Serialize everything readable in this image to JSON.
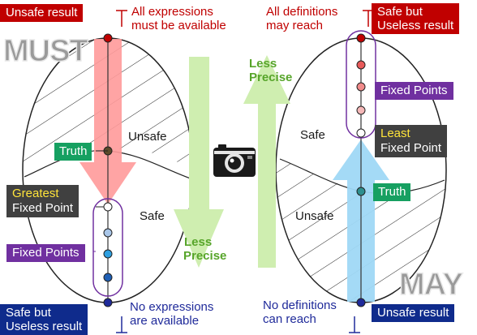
{
  "colors": {
    "red_box": "#c00000",
    "navy_box": "#0f2b8c",
    "green_box": "#16a061",
    "purple_box": "#7030a0",
    "dark_box": "#404040",
    "yellow_text": "#ffe43a",
    "purple_outline": "#7030a0",
    "red_arrow": "#ff9a9a",
    "blue_arrow": "#9fd8f5",
    "green_arrow": "#cfeeb0"
  },
  "must": {
    "title": "MUST",
    "top_box": "Unsafe result",
    "top_note": [
      "All expressions",
      "must be available"
    ],
    "bottom_box": [
      "Safe but",
      "Useless result"
    ],
    "bottom_note": [
      "No expressions",
      "are available"
    ],
    "truth_label": "Truth",
    "unsafe_label": "Unsafe",
    "safe_label": "Safe",
    "extremal_box": {
      "highlight": "Greatest",
      "rest": "Fixed Point"
    },
    "fixed_points_box": "Fixed Points",
    "precision_label": [
      "Less",
      "Precise"
    ]
  },
  "may": {
    "title": "MAY",
    "top_box": [
      "Safe but",
      "Useless result"
    ],
    "top_note": [
      "All definitions",
      "may reach"
    ],
    "bottom_box": "Unsafe result",
    "bottom_note": [
      "No definitions",
      "can reach"
    ],
    "truth_label": "Truth",
    "safe_label": "Safe",
    "unsafe_label": "Unsafe",
    "extremal_box": {
      "highlight": "Least",
      "rest": "Fixed Point"
    },
    "fixed_points_box": "Fixed Points",
    "precision_label": [
      "Less",
      "Precise"
    ]
  },
  "icons": {
    "center": "camera-icon"
  }
}
